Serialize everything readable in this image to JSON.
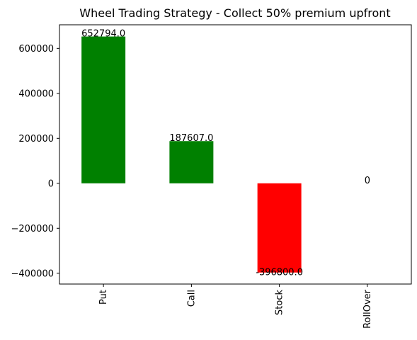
{
  "chart_data": {
    "type": "bar",
    "title": "Wheel Trading Strategy - Collect 50% premium upfront",
    "xlabel": "",
    "ylabel": "",
    "categories": [
      "Put",
      "Call",
      "Stock",
      "RollOver"
    ],
    "values": [
      652794.0,
      187607.0,
      -396800.0,
      0
    ],
    "data_labels": [
      "652794.0",
      "187607.0",
      "-396800.0",
      "0"
    ],
    "bar_colors": [
      "#008000",
      "#008000",
      "#ff0000",
      "#008000"
    ],
    "yticks": [
      -400000,
      -200000,
      0,
      200000,
      400000,
      600000
    ],
    "ytick_labels": [
      "−400000",
      "−200000",
      "0",
      "200000",
      "400000",
      "600000"
    ],
    "ylim": [
      -448000,
      705000
    ],
    "grid": false,
    "legend": "none"
  }
}
